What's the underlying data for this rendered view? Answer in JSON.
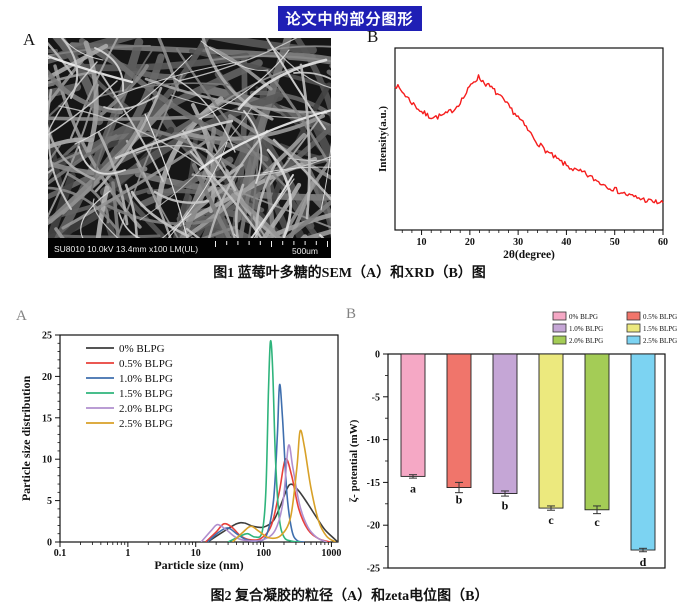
{
  "page": {
    "title": "论文中的部分图形",
    "title_bg": "#1f1fb5",
    "title_color": "#ffffff"
  },
  "figure1": {
    "caption": "图1 蓝莓叶多糖的SEM（A）和XRD（B）图",
    "panel_a": {
      "label": "A",
      "sem_info": "SU8010 10.0kV 13.4mm x100 LM(UL)",
      "scale_text": "500um"
    },
    "panel_b": {
      "label": "B"
    }
  },
  "figure2": {
    "caption": "图2 复合凝胶的粒径（A）和zeta电位图（B）",
    "panel_a_label": "A",
    "panel_b_label": "B"
  },
  "chart_data": [
    {
      "id": "xrd",
      "panel": "figure1-B",
      "type": "line",
      "title": "",
      "xlabel": "2θ(degree)",
      "ylabel": "Intensity(a.u.)",
      "xlim": [
        4.5,
        60
      ],
      "xticks": [
        10,
        20,
        30,
        40,
        50,
        60
      ],
      "x_minor_step": 2,
      "ylim": [
        0,
        100
      ],
      "grid": false,
      "line_color": "#f51d1d",
      "noise_amplitude": 1.5,
      "points": [
        [
          4.5,
          80
        ],
        [
          6,
          76
        ],
        [
          8,
          70
        ],
        [
          10,
          65
        ],
        [
          11.5,
          62.5
        ],
        [
          13,
          62
        ],
        [
          15,
          63.5
        ],
        [
          17,
          67
        ],
        [
          19,
          74
        ],
        [
          20.5,
          81
        ],
        [
          21.8,
          84
        ],
        [
          23,
          81
        ],
        [
          24.5,
          78
        ],
        [
          26,
          74
        ],
        [
          28,
          68
        ],
        [
          30,
          62
        ],
        [
          32,
          55
        ],
        [
          34,
          48
        ],
        [
          36,
          43
        ],
        [
          38,
          39
        ],
        [
          40,
          35.5
        ],
        [
          42,
          32.5
        ],
        [
          43.5,
          31.5
        ],
        [
          45,
          29
        ],
        [
          47,
          26
        ],
        [
          49,
          23.5
        ],
        [
          51,
          21
        ],
        [
          53,
          19
        ],
        [
          55,
          17.5
        ],
        [
          57,
          16
        ],
        [
          58.5,
          15.3
        ],
        [
          60,
          15
        ]
      ]
    },
    {
      "id": "particle-size-distribution",
      "panel": "figure2-A",
      "type": "line",
      "title": "",
      "xlabel": "Particle size (nm)",
      "ylabel": "Particle size distribution",
      "xscale": "log",
      "xlim": [
        0.1,
        1250
      ],
      "xtick_labels": [
        "0.1",
        "1",
        "10",
        "100",
        "1000"
      ],
      "xtick_values": [
        0.1,
        1,
        10,
        100,
        1000
      ],
      "ylim": [
        0,
        25
      ],
      "yticks": [
        0,
        5,
        10,
        15,
        20,
        25
      ],
      "y_minor_step": 1,
      "grid": false,
      "legend_position": "top-left",
      "series": [
        {
          "name": "0% BLPG",
          "color": "#3d3d3d",
          "points": [
            [
              15,
              0
            ],
            [
              25,
              1.2
            ],
            [
              40,
              2.2
            ],
            [
              52,
              2.3
            ],
            [
              70,
              1.9
            ],
            [
              100,
              1.8
            ],
            [
              140,
              2.6
            ],
            [
              180,
              4.5
            ],
            [
              240,
              6.9
            ],
            [
              320,
              6.3
            ],
            [
              450,
              4.6
            ],
            [
              600,
              3.0
            ],
            [
              800,
              1.5
            ],
            [
              1100,
              0.4
            ],
            [
              1240,
              0
            ]
          ]
        },
        {
          "name": "0.5% BLPG",
          "color": "#e8403a",
          "points": [
            [
              14,
              0
            ],
            [
              20,
              1.2
            ],
            [
              26,
              2.2
            ],
            [
              34,
              1.8
            ],
            [
              45,
              0.8
            ],
            [
              60,
              0.3
            ],
            [
              90,
              0.4
            ],
            [
              130,
              2.0
            ],
            [
              170,
              6.0
            ],
            [
              210,
              10.0
            ],
            [
              260,
              8.0
            ],
            [
              330,
              4.0
            ],
            [
              450,
              1.5
            ],
            [
              650,
              0.4
            ],
            [
              950,
              0
            ]
          ]
        },
        {
          "name": "1.0% BLPG",
          "color": "#3f6fae",
          "points": [
            [
              15,
              0
            ],
            [
              22,
              1.2
            ],
            [
              30,
              1.7
            ],
            [
              40,
              1.0
            ],
            [
              55,
              0.3
            ],
            [
              80,
              0.15
            ],
            [
              110,
              0.8
            ],
            [
              140,
              5.0
            ],
            [
              160,
              13.0
            ],
            [
              172,
              19.0
            ],
            [
              190,
              15.0
            ],
            [
              220,
              6.0
            ],
            [
              260,
              1.5
            ],
            [
              310,
              0.2
            ],
            [
              400,
              0
            ]
          ]
        },
        {
          "name": "1.5% BLPG",
          "color": "#2fb47c",
          "points": [
            [
              30,
              0
            ],
            [
              45,
              0.7
            ],
            [
              58,
              1.0
            ],
            [
              75,
              0.6
            ],
            [
              95,
              1.2
            ],
            [
              108,
              6.0
            ],
            [
              118,
              18.0
            ],
            [
              126,
              24.2
            ],
            [
              136,
              21.0
            ],
            [
              150,
              10.0
            ],
            [
              170,
              3.0
            ],
            [
              200,
              0.6
            ],
            [
              260,
              0.1
            ],
            [
              350,
              0
            ]
          ]
        },
        {
          "name": "2.0% BLPG",
          "color": "#b08fce",
          "points": [
            [
              12,
              0
            ],
            [
              17,
              1.4
            ],
            [
              21,
              2.1
            ],
            [
              28,
              1.5
            ],
            [
              40,
              0.5
            ],
            [
              60,
              0.15
            ],
            [
              100,
              0.3
            ],
            [
              150,
              1.5
            ],
            [
              195,
              5.0
            ],
            [
              232,
              11.6
            ],
            [
              270,
              9.0
            ],
            [
              340,
              4.5
            ],
            [
              450,
              1.8
            ],
            [
              620,
              0.5
            ],
            [
              850,
              0
            ]
          ]
        },
        {
          "name": "2.5% BLPG",
          "color": "#d8a128",
          "points": [
            [
              35,
              0
            ],
            [
              50,
              1.2
            ],
            [
              65,
              1.9
            ],
            [
              85,
              1.3
            ],
            [
              120,
              0.5
            ],
            [
              180,
              0.8
            ],
            [
              250,
              3.0
            ],
            [
              310,
              9.0
            ],
            [
              345,
              13.4
            ],
            [
              400,
              11.5
            ],
            [
              500,
              6.5
            ],
            [
              650,
              2.5
            ],
            [
              850,
              0.7
            ],
            [
              1150,
              0
            ]
          ]
        }
      ]
    },
    {
      "id": "zeta-potential",
      "panel": "figure2-B",
      "type": "bar",
      "title": "",
      "xlabel": "",
      "ylabel": "ζ- potential (mW)",
      "ylim": [
        -25,
        0
      ],
      "yticks": [
        0,
        -5,
        -10,
        -15,
        -20,
        -25
      ],
      "y_minor_step": 2.5,
      "grid": false,
      "legend_position": "top-right",
      "categories": [
        "0% BLPG",
        "0.5% BLPG",
        "1.0% BLPG",
        "1.5% BLPG",
        "2.0% BLPG",
        "2.5% BLPG"
      ],
      "values": [
        -14.3,
        -15.6,
        -16.3,
        -18.0,
        -18.2,
        -22.9
      ],
      "errors": [
        0.2,
        0.6,
        0.3,
        0.25,
        0.45,
        0.2
      ],
      "sig_letters": [
        "a",
        "b",
        "b",
        "c",
        "c",
        "d"
      ],
      "bar_colors": [
        "#f5a8c5",
        "#f0756b",
        "#c5a6d6",
        "#ece97e",
        "#a4cc56",
        "#7cd3f2"
      ],
      "bar_edge": "#222222"
    }
  ]
}
